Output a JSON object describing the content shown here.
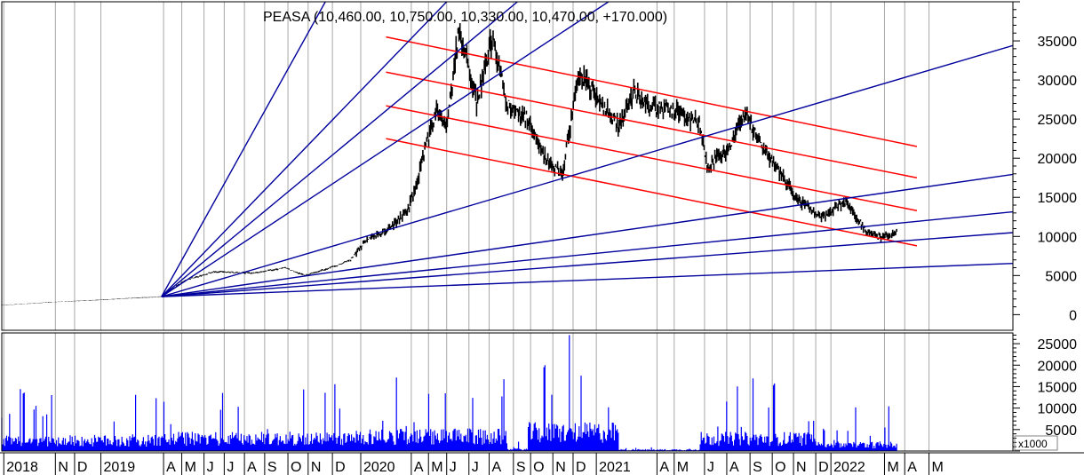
{
  "chart_data": {
    "type": "candlestick",
    "title": "PEASA (10,460.00, 10,750.00, 10,330.00, 10,470.00, +170.000)",
    "price_panel": {
      "ylim": [
        -2000,
        40000
      ],
      "yticks": [
        0,
        5000,
        10000,
        15000,
        20000,
        25000,
        30000,
        35000
      ],
      "ytick_labels": [
        "0",
        "5000",
        "10000",
        "15000",
        "20000",
        "25000",
        "30000",
        "35000"
      ],
      "series_anchor_points": [
        {
          "t": 0.0,
          "v": 1200
        },
        {
          "t": 0.05,
          "v": 1600
        },
        {
          "t": 0.1,
          "v": 1900
        },
        {
          "t": 0.158,
          "v": 2300
        },
        {
          "t": 0.18,
          "v": 4300
        },
        {
          "t": 0.21,
          "v": 5500
        },
        {
          "t": 0.25,
          "v": 5300
        },
        {
          "t": 0.28,
          "v": 6000
        },
        {
          "t": 0.3,
          "v": 5000
        },
        {
          "t": 0.33,
          "v": 6200
        },
        {
          "t": 0.345,
          "v": 7000
        },
        {
          "t": 0.36,
          "v": 9500
        },
        {
          "t": 0.38,
          "v": 10800
        },
        {
          "t": 0.4,
          "v": 13000
        },
        {
          "t": 0.41,
          "v": 16500
        },
        {
          "t": 0.42,
          "v": 22000
        },
        {
          "t": 0.43,
          "v": 26000
        },
        {
          "t": 0.44,
          "v": 24000
        },
        {
          "t": 0.452,
          "v": 36500
        },
        {
          "t": 0.47,
          "v": 27000
        },
        {
          "t": 0.485,
          "v": 35500
        },
        {
          "t": 0.5,
          "v": 27000
        },
        {
          "t": 0.52,
          "v": 25000
        },
        {
          "t": 0.54,
          "v": 19500
        },
        {
          "t": 0.555,
          "v": 18000
        },
        {
          "t": 0.57,
          "v": 31000
        },
        {
          "t": 0.59,
          "v": 27500
        },
        {
          "t": 0.61,
          "v": 24000
        },
        {
          "t": 0.625,
          "v": 28500
        },
        {
          "t": 0.64,
          "v": 26500
        },
        {
          "t": 0.67,
          "v": 26000
        },
        {
          "t": 0.69,
          "v": 24500
        },
        {
          "t": 0.698,
          "v": 19000
        },
        {
          "t": 0.72,
          "v": 21500
        },
        {
          "t": 0.735,
          "v": 26000
        },
        {
          "t": 0.75,
          "v": 22000
        },
        {
          "t": 0.77,
          "v": 18000
        },
        {
          "t": 0.785,
          "v": 15000
        },
        {
          "t": 0.81,
          "v": 12500
        },
        {
          "t": 0.835,
          "v": 14500
        },
        {
          "t": 0.855,
          "v": 10500
        },
        {
          "t": 0.87,
          "v": 9800
        },
        {
          "t": 0.885,
          "v": 10500
        }
      ],
      "red_channel_lines": [
        {
          "start": [
            0.38,
            35500
          ],
          "end": [
            0.905,
            21500
          ]
        },
        {
          "start": [
            0.38,
            31000
          ],
          "end": [
            0.905,
            17500
          ]
        },
        {
          "start": [
            0.38,
            26700
          ],
          "end": [
            0.905,
            13300
          ]
        },
        {
          "start": [
            0.38,
            22500
          ],
          "end": [
            0.905,
            8800
          ]
        }
      ],
      "gann_fan_origin": [
        0.158,
        2300
      ],
      "gann_fan_rays": [
        {
          "end": [
            0.32,
            40000
          ]
        },
        {
          "end": [
            0.44,
            40000
          ]
        },
        {
          "end": [
            0.51,
            40000
          ]
        },
        {
          "end": [
            0.6,
            40000
          ]
        },
        {
          "end": [
            0.95,
            32500
          ]
        },
        {
          "end": [
            0.95,
            17000
          ]
        },
        {
          "end": [
            0.95,
            12500
          ]
        },
        {
          "end": [
            0.95,
            10000
          ]
        },
        {
          "end": [
            0.95,
            6300
          ]
        }
      ]
    },
    "volume_panel": {
      "ylim": [
        0,
        27500
      ],
      "yticks": [
        5000,
        10000,
        15000,
        20000,
        25000
      ],
      "ytick_labels": [
        "5000",
        "10000",
        "15000",
        "20000",
        "25000"
      ],
      "unit_label": "x1000",
      "color": "#0000ff"
    },
    "x_axis": {
      "tick_labels": [
        "2018",
        "N",
        "D",
        "2019",
        "A",
        "M",
        "J",
        "J",
        "A",
        "S",
        "O",
        "N",
        "D",
        "2020",
        "A",
        "M",
        "J",
        "J",
        "A",
        "S",
        "O",
        "N",
        "D",
        "2021",
        "A",
        "M",
        "J",
        "A",
        "S",
        "O",
        "N",
        "D",
        "2022",
        "M",
        "A",
        "M"
      ],
      "tick_pos": [
        0.002,
        0.053,
        0.072,
        0.098,
        0.16,
        0.178,
        0.2,
        0.22,
        0.24,
        0.26,
        0.283,
        0.303,
        0.327,
        0.355,
        0.405,
        0.422,
        0.44,
        0.462,
        0.482,
        0.506,
        0.523,
        0.545,
        0.565,
        0.588,
        0.648,
        0.665,
        0.695,
        0.717,
        0.74,
        0.762,
        0.783,
        0.805,
        0.82,
        0.873,
        0.893,
        0.917
      ]
    },
    "colors": {
      "price": "#000000",
      "channel": "#ff0000",
      "fan": "#00009c",
      "volume": "#0000ff",
      "grid": "#a8a8a8"
    },
    "grid": true
  }
}
